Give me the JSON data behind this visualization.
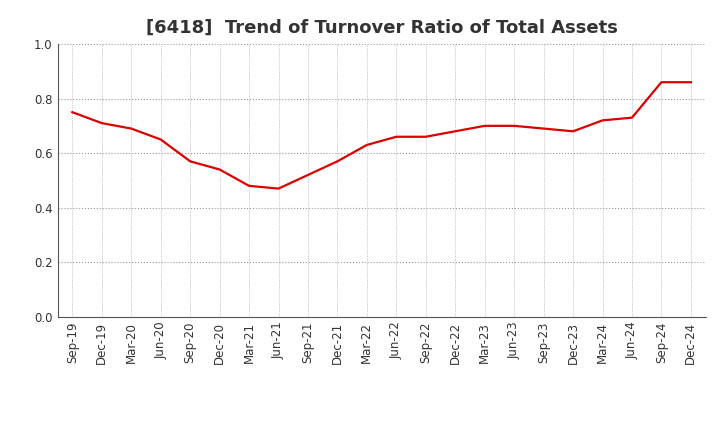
{
  "title": "[6418]  Trend of Turnover Ratio of Total Assets",
  "x_labels": [
    "Sep-19",
    "Dec-19",
    "Mar-20",
    "Jun-20",
    "Sep-20",
    "Dec-20",
    "Mar-21",
    "Jun-21",
    "Sep-21",
    "Dec-21",
    "Mar-22",
    "Jun-22",
    "Sep-22",
    "Dec-22",
    "Mar-23",
    "Jun-23",
    "Sep-23",
    "Dec-23",
    "Mar-24",
    "Jun-24",
    "Sep-24",
    "Dec-24"
  ],
  "y_values": [
    0.75,
    0.71,
    0.69,
    0.65,
    0.57,
    0.54,
    0.48,
    0.47,
    0.52,
    0.57,
    0.63,
    0.66,
    0.66,
    0.68,
    0.7,
    0.7,
    0.69,
    0.68,
    0.72,
    0.73,
    0.86,
    0.86
  ],
  "line_color": "#DD0000",
  "line_width": 1.6,
  "ylim": [
    0.0,
    1.0
  ],
  "yticks": [
    0.0,
    0.2,
    0.4,
    0.6,
    0.8,
    1.0
  ],
  "background_color": "#FFFFFF",
  "grid_color": "#999999",
  "title_fontsize": 13,
  "tick_fontsize": 8.5,
  "title_color": "#333333"
}
